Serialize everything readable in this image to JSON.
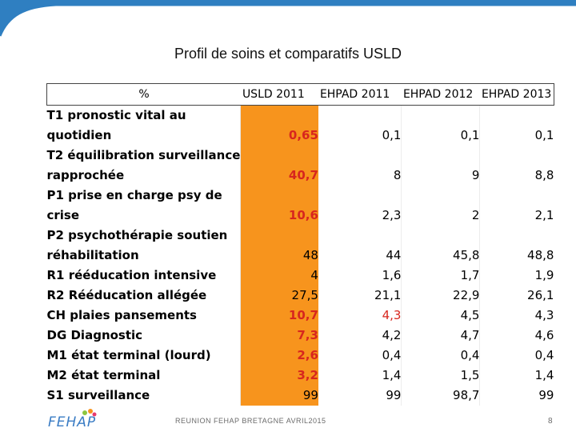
{
  "title": "Profil de soins et comparatifs USLD",
  "table": {
    "header_label": "%",
    "columns": [
      "USLD 2011",
      "EHPAD 2011",
      "EHPAD 2012",
      "EHPAD 2013"
    ],
    "rows": [
      {
        "label": "T1 pronostic vital au",
        "values": [
          "",
          "",
          "",
          ""
        ]
      },
      {
        "label": "quotidien",
        "values": [
          "0,65",
          "0,1",
          "0,1",
          "0,1"
        ]
      },
      {
        "label": "T2 équilibration surveillance",
        "values": [
          "",
          "",
          "",
          ""
        ]
      },
      {
        "label": "rapprochée",
        "values": [
          "40,7",
          "8",
          "9",
          "8,8"
        ]
      },
      {
        "label": "P1 prise en charge psy de",
        "values": [
          "",
          "",
          "",
          ""
        ]
      },
      {
        "label": "crise",
        "values": [
          "10,6",
          "2,3",
          "2",
          "2,1"
        ]
      },
      {
        "label": "P2 psychothérapie soutien",
        "values": [
          "",
          "",
          "",
          ""
        ]
      },
      {
        "label": "réhabilitation",
        "values": [
          "48",
          "44",
          "45,8",
          "48,8"
        ]
      },
      {
        "label": "R1 rééducation intensive",
        "values": [
          "4",
          "1,6",
          "1,7",
          "1,9"
        ]
      },
      {
        "label": "R2 Rééducation allégée",
        "values": [
          "27,5",
          "21,1",
          "22,9",
          "26,1"
        ]
      },
      {
        "label": "CH  plaies pansements",
        "values": [
          "10,7",
          "4,3",
          "4,5",
          "4,3"
        ]
      },
      {
        "label": "DG Diagnostic",
        "values": [
          "7,3",
          "4,2",
          "4,7",
          "4,6"
        ]
      },
      {
        "label": "M1 état terminal (lourd)",
        "values": [
          "2,6",
          "0,4",
          "0,4",
          "0,4"
        ]
      },
      {
        "label": "M2 état terminal",
        "values": [
          "3,2",
          "1,4",
          "1,5",
          "1,4"
        ]
      },
      {
        "label": "S1 surveillance",
        "values": [
          "99",
          "99",
          "98,7",
          "99"
        ]
      }
    ]
  },
  "footer": {
    "text": "REUNION FEHAP BRETAGNE AVRIL2015",
    "page_number": "8",
    "logo_text": "FEHAP"
  },
  "colors": {
    "highlight_column": "#f7941d",
    "red_text": "#d7261e",
    "swoosh": "#2f7fc1"
  }
}
